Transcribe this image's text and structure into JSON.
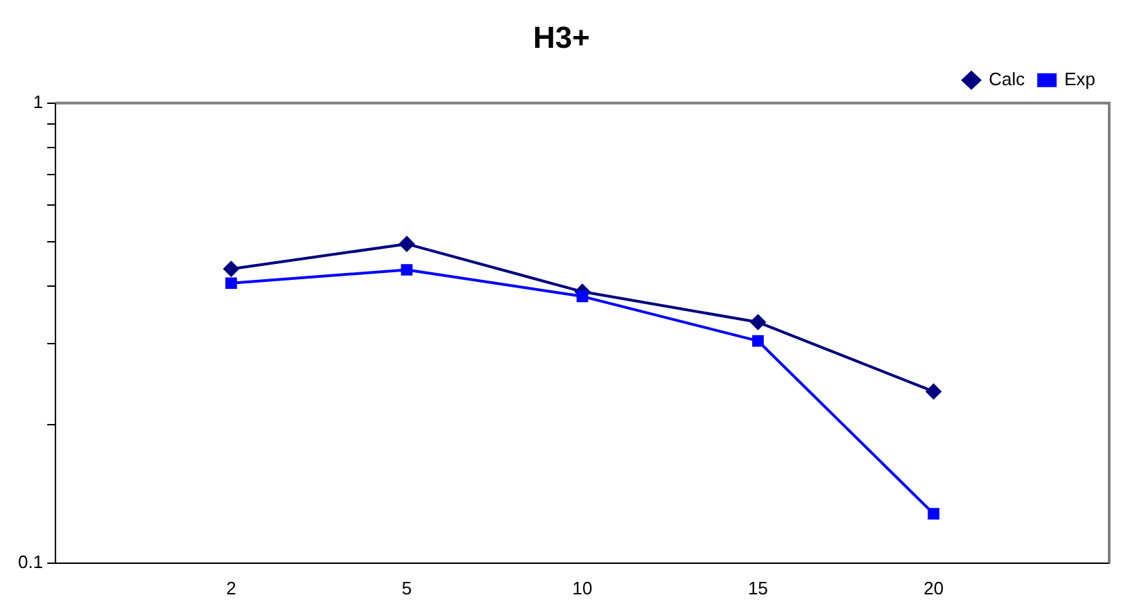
{
  "chart_data": {
    "type": "line",
    "title": "H3+",
    "categories": [
      null,
      "2",
      "5",
      "10",
      "15",
      "20",
      null
    ],
    "series": [
      {
        "name": "Calc",
        "color": "#000080",
        "marker": "diamond",
        "values": [
          null,
          0.436,
          0.494,
          0.389,
          0.334,
          0.236,
          null
        ]
      },
      {
        "name": "Exp",
        "color": "#0000ff",
        "marker": "square",
        "values": [
          null,
          0.406,
          0.434,
          0.38,
          0.304,
          0.128,
          null
        ]
      }
    ],
    "log": "y",
    "ylim": [
      0.1,
      1
    ],
    "yticks": [
      0.1,
      {
        "value": 0.2,
        "label": null
      },
      {
        "value": 0.3,
        "label": null
      },
      {
        "value": 0.4,
        "label": null
      },
      {
        "value": 0.5,
        "label": null
      },
      {
        "value": 0.6,
        "label": null
      },
      {
        "value": 0.7,
        "label": null
      },
      {
        "value": 0.8,
        "label": null
      },
      {
        "value": 0.9,
        "label": null
      },
      1
    ],
    "grid": false,
    "legend": "top right",
    "line_style": "solid"
  }
}
